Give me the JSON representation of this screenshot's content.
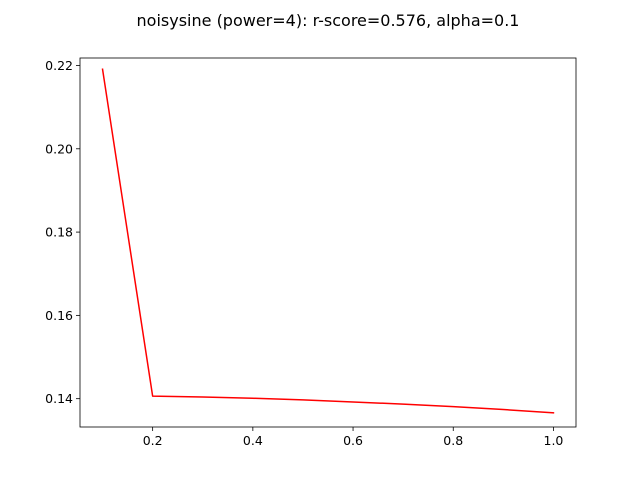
{
  "chart_data": {
    "type": "line",
    "title": "noisysine (power=4): r-score=0.576, alpha=0.1",
    "xlabel": "",
    "ylabel": "",
    "xlim": [
      0.055,
      1.045
    ],
    "ylim": [
      0.1332,
      0.2218
    ],
    "x_ticks": [
      0.2,
      0.4,
      0.6,
      0.8,
      1.0
    ],
    "x_tick_labels": [
      "0.2",
      "0.4",
      "0.6",
      "0.8",
      "1.0"
    ],
    "y_ticks": [
      0.14,
      0.16,
      0.18,
      0.2,
      0.22
    ],
    "y_tick_labels": [
      "0.14",
      "0.16",
      "0.18",
      "0.20",
      "0.22"
    ],
    "grid": false,
    "legend": false,
    "series": [
      {
        "color": "#ff0000",
        "x": [
          0.1,
          0.2,
          0.3,
          0.4,
          0.5,
          0.6,
          0.7,
          0.8,
          0.9,
          1.0
        ],
        "y": [
          0.2191,
          0.1406,
          0.1404,
          0.1401,
          0.1397,
          0.1392,
          0.1387,
          0.1381,
          0.1374,
          0.1366
        ]
      }
    ]
  }
}
